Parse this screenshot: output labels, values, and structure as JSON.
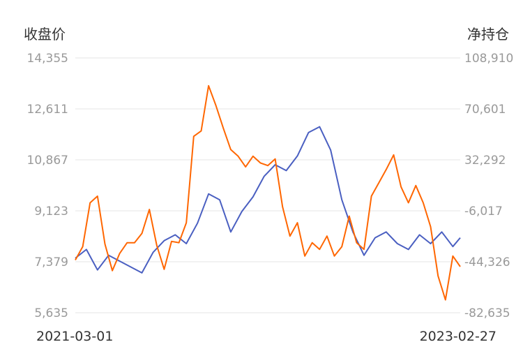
{
  "chart_data": {
    "type": "line",
    "left_axis_title": "收盘价",
    "right_axis_title": "净持仓",
    "y_left": {
      "range": [
        5635,
        14355
      ],
      "tick_labels": [
        "14,355",
        "12,611",
        "10,867",
        "9,123",
        "7,379",
        "5,635"
      ]
    },
    "y_right": {
      "range": [
        -82635,
        108910
      ],
      "tick_labels": [
        "108,910",
        "70,601",
        "32,292",
        "-6,017",
        "-44,326",
        "-82,635"
      ]
    },
    "x_range": [
      "2021-03-01",
      "2023-02-27"
    ],
    "x_tick_labels": [
      "2021-03-01",
      "2023-02-27"
    ],
    "grid": true,
    "colors": {
      "close_price": "#4a5fc1",
      "net_position": "#ff6600"
    },
    "series": [
      {
        "axis": "left",
        "color": "#4a5fc1",
        "x": [
          "2021-03-01",
          "2021-03-22",
          "2021-04-12",
          "2021-05-03",
          "2021-05-24",
          "2021-06-14",
          "2021-07-05",
          "2021-07-26",
          "2021-08-16",
          "2021-09-06",
          "2021-09-27",
          "2021-10-18",
          "2021-11-08",
          "2021-11-29",
          "2021-12-20",
          "2022-01-10",
          "2022-01-31",
          "2022-02-21",
          "2022-03-14",
          "2022-04-04",
          "2022-04-25",
          "2022-05-16",
          "2022-06-06",
          "2022-06-27",
          "2022-07-18",
          "2022-08-08",
          "2022-08-29",
          "2022-09-19",
          "2022-10-10",
          "2022-10-31",
          "2022-11-21",
          "2022-12-12",
          "2023-01-02",
          "2023-01-23",
          "2023-02-13",
          "2023-02-27"
        ],
        "values": [
          7500,
          7800,
          7100,
          7600,
          7400,
          7200,
          7000,
          7700,
          8100,
          8300,
          8000,
          8700,
          9700,
          9500,
          8400,
          9100,
          9600,
          10300,
          10700,
          10500,
          11000,
          11800,
          12000,
          11200,
          9500,
          8400,
          7600,
          8200,
          8400,
          8000,
          7800,
          8300,
          8000,
          8400,
          7900,
          8200
        ]
      },
      {
        "axis": "right",
        "color": "#ff6600",
        "x": [
          "2021-03-01",
          "2021-03-15",
          "2021-03-29",
          "2021-04-12",
          "2021-04-26",
          "2021-05-10",
          "2021-05-24",
          "2021-06-07",
          "2021-06-21",
          "2021-07-05",
          "2021-07-19",
          "2021-08-02",
          "2021-08-16",
          "2021-08-30",
          "2021-09-13",
          "2021-09-27",
          "2021-10-11",
          "2021-10-25",
          "2021-11-08",
          "2021-11-22",
          "2021-12-06",
          "2021-12-20",
          "2022-01-03",
          "2022-01-17",
          "2022-01-31",
          "2022-02-14",
          "2022-02-28",
          "2022-03-14",
          "2022-03-28",
          "2022-04-11",
          "2022-04-25",
          "2022-05-09",
          "2022-05-23",
          "2022-06-06",
          "2022-06-20",
          "2022-07-04",
          "2022-07-18",
          "2022-08-01",
          "2022-08-15",
          "2022-08-29",
          "2022-09-12",
          "2022-09-26",
          "2022-10-10",
          "2022-10-24",
          "2022-11-07",
          "2022-11-21",
          "2022-12-05",
          "2022-12-19",
          "2023-01-02",
          "2023-01-16",
          "2023-01-30",
          "2023-02-13",
          "2023-02-27"
        ],
        "values": [
          -43000,
          -33000,
          0,
          5000,
          -31000,
          -51000,
          -38000,
          -30000,
          -30000,
          -23000,
          -5000,
          -32000,
          -50000,
          -29000,
          -30000,
          -15000,
          50000,
          54000,
          88000,
          73000,
          56000,
          40000,
          35000,
          27000,
          35000,
          30000,
          28000,
          33000,
          -3000,
          -25000,
          -15000,
          -40000,
          -30000,
          -35000,
          -25000,
          -40000,
          -33000,
          -10000,
          -30000,
          -35000,
          5000,
          15000,
          25000,
          36000,
          12000,
          0,
          13000,
          0,
          -18000,
          -55000,
          -73000,
          -40000,
          -48000
        ]
      }
    ]
  }
}
